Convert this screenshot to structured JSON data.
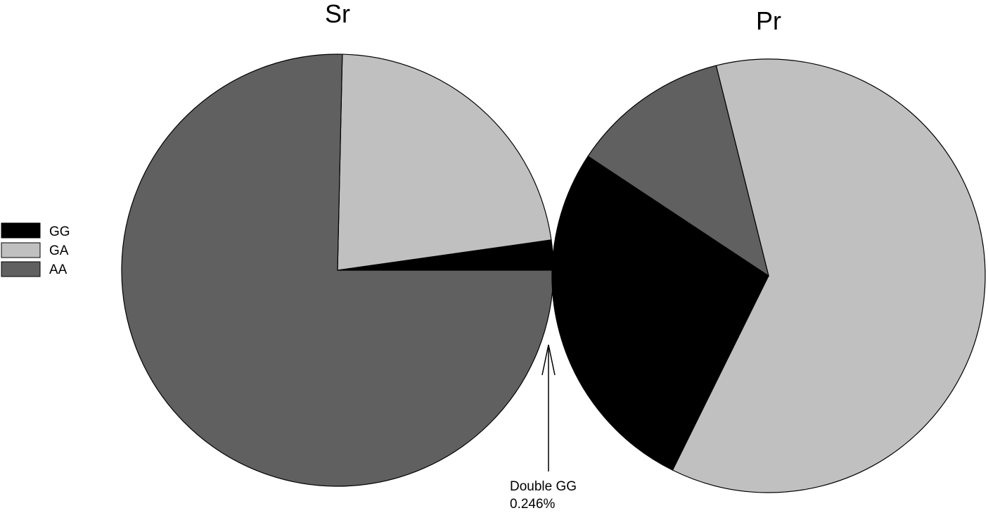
{
  "legend": {
    "placement": "left",
    "items": [
      {
        "label": "GG",
        "color": "#000000"
      },
      {
        "label": "GA",
        "color": "#c0c0c0"
      },
      {
        "label": "AA",
        "color": "#606060"
      }
    ]
  },
  "chart_data": [
    {
      "type": "pie",
      "title": "Sr",
      "categories": [
        "GG",
        "GA",
        "AA"
      ],
      "values": [
        2.246,
        22.4,
        75.35
      ],
      "colors": [
        "#000000",
        "#c0c0c0",
        "#606060"
      ]
    },
    {
      "type": "pie",
      "title": "Pr",
      "categories": [
        "GG",
        "GA",
        "AA"
      ],
      "values": [
        27.0,
        61.2,
        11.8
      ],
      "colors": [
        "#000000",
        "#c0c0c0",
        "#606060"
      ]
    }
  ],
  "annotation": {
    "line1": "Double GG",
    "line2": "0.246%"
  }
}
